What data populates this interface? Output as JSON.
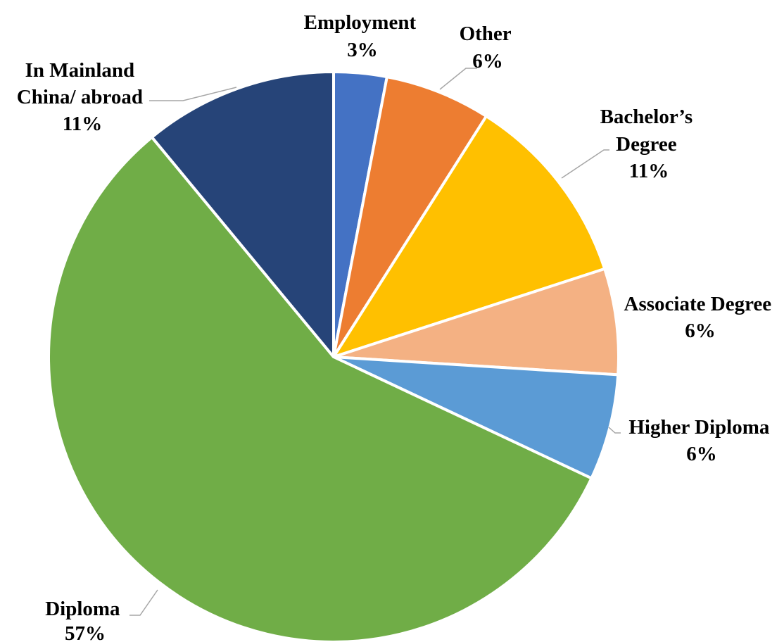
{
  "chart_data": {
    "type": "pie",
    "title": "",
    "start_angle_deg": 0,
    "direction": "clockwise",
    "slices": [
      {
        "key": "employment",
        "name": "Employment",
        "value": 3,
        "value_label": "3%",
        "color": "#4472C4"
      },
      {
        "key": "other",
        "name": "Other",
        "value": 6,
        "value_label": "6%",
        "color": "#ED7D31"
      },
      {
        "key": "bachelors",
        "name": "Bachelor’s Degree",
        "value": 11,
        "value_label": "11%",
        "color": "#FFC000"
      },
      {
        "key": "associate",
        "name": "Associate Degree",
        "value": 6,
        "value_label": "6%",
        "color": "#F4B183"
      },
      {
        "key": "higher-diploma",
        "name": "Higher Diploma",
        "value": 6,
        "value_label": "6%",
        "color": "#5B9BD5"
      },
      {
        "key": "diploma",
        "name": "Diploma",
        "value": 57,
        "value_label": "57%",
        "color": "#70AD47"
      },
      {
        "key": "mainland",
        "name": "In Mainland China/ abroad",
        "value": 11,
        "value_label": "11%",
        "color": "#264478"
      }
    ]
  }
}
